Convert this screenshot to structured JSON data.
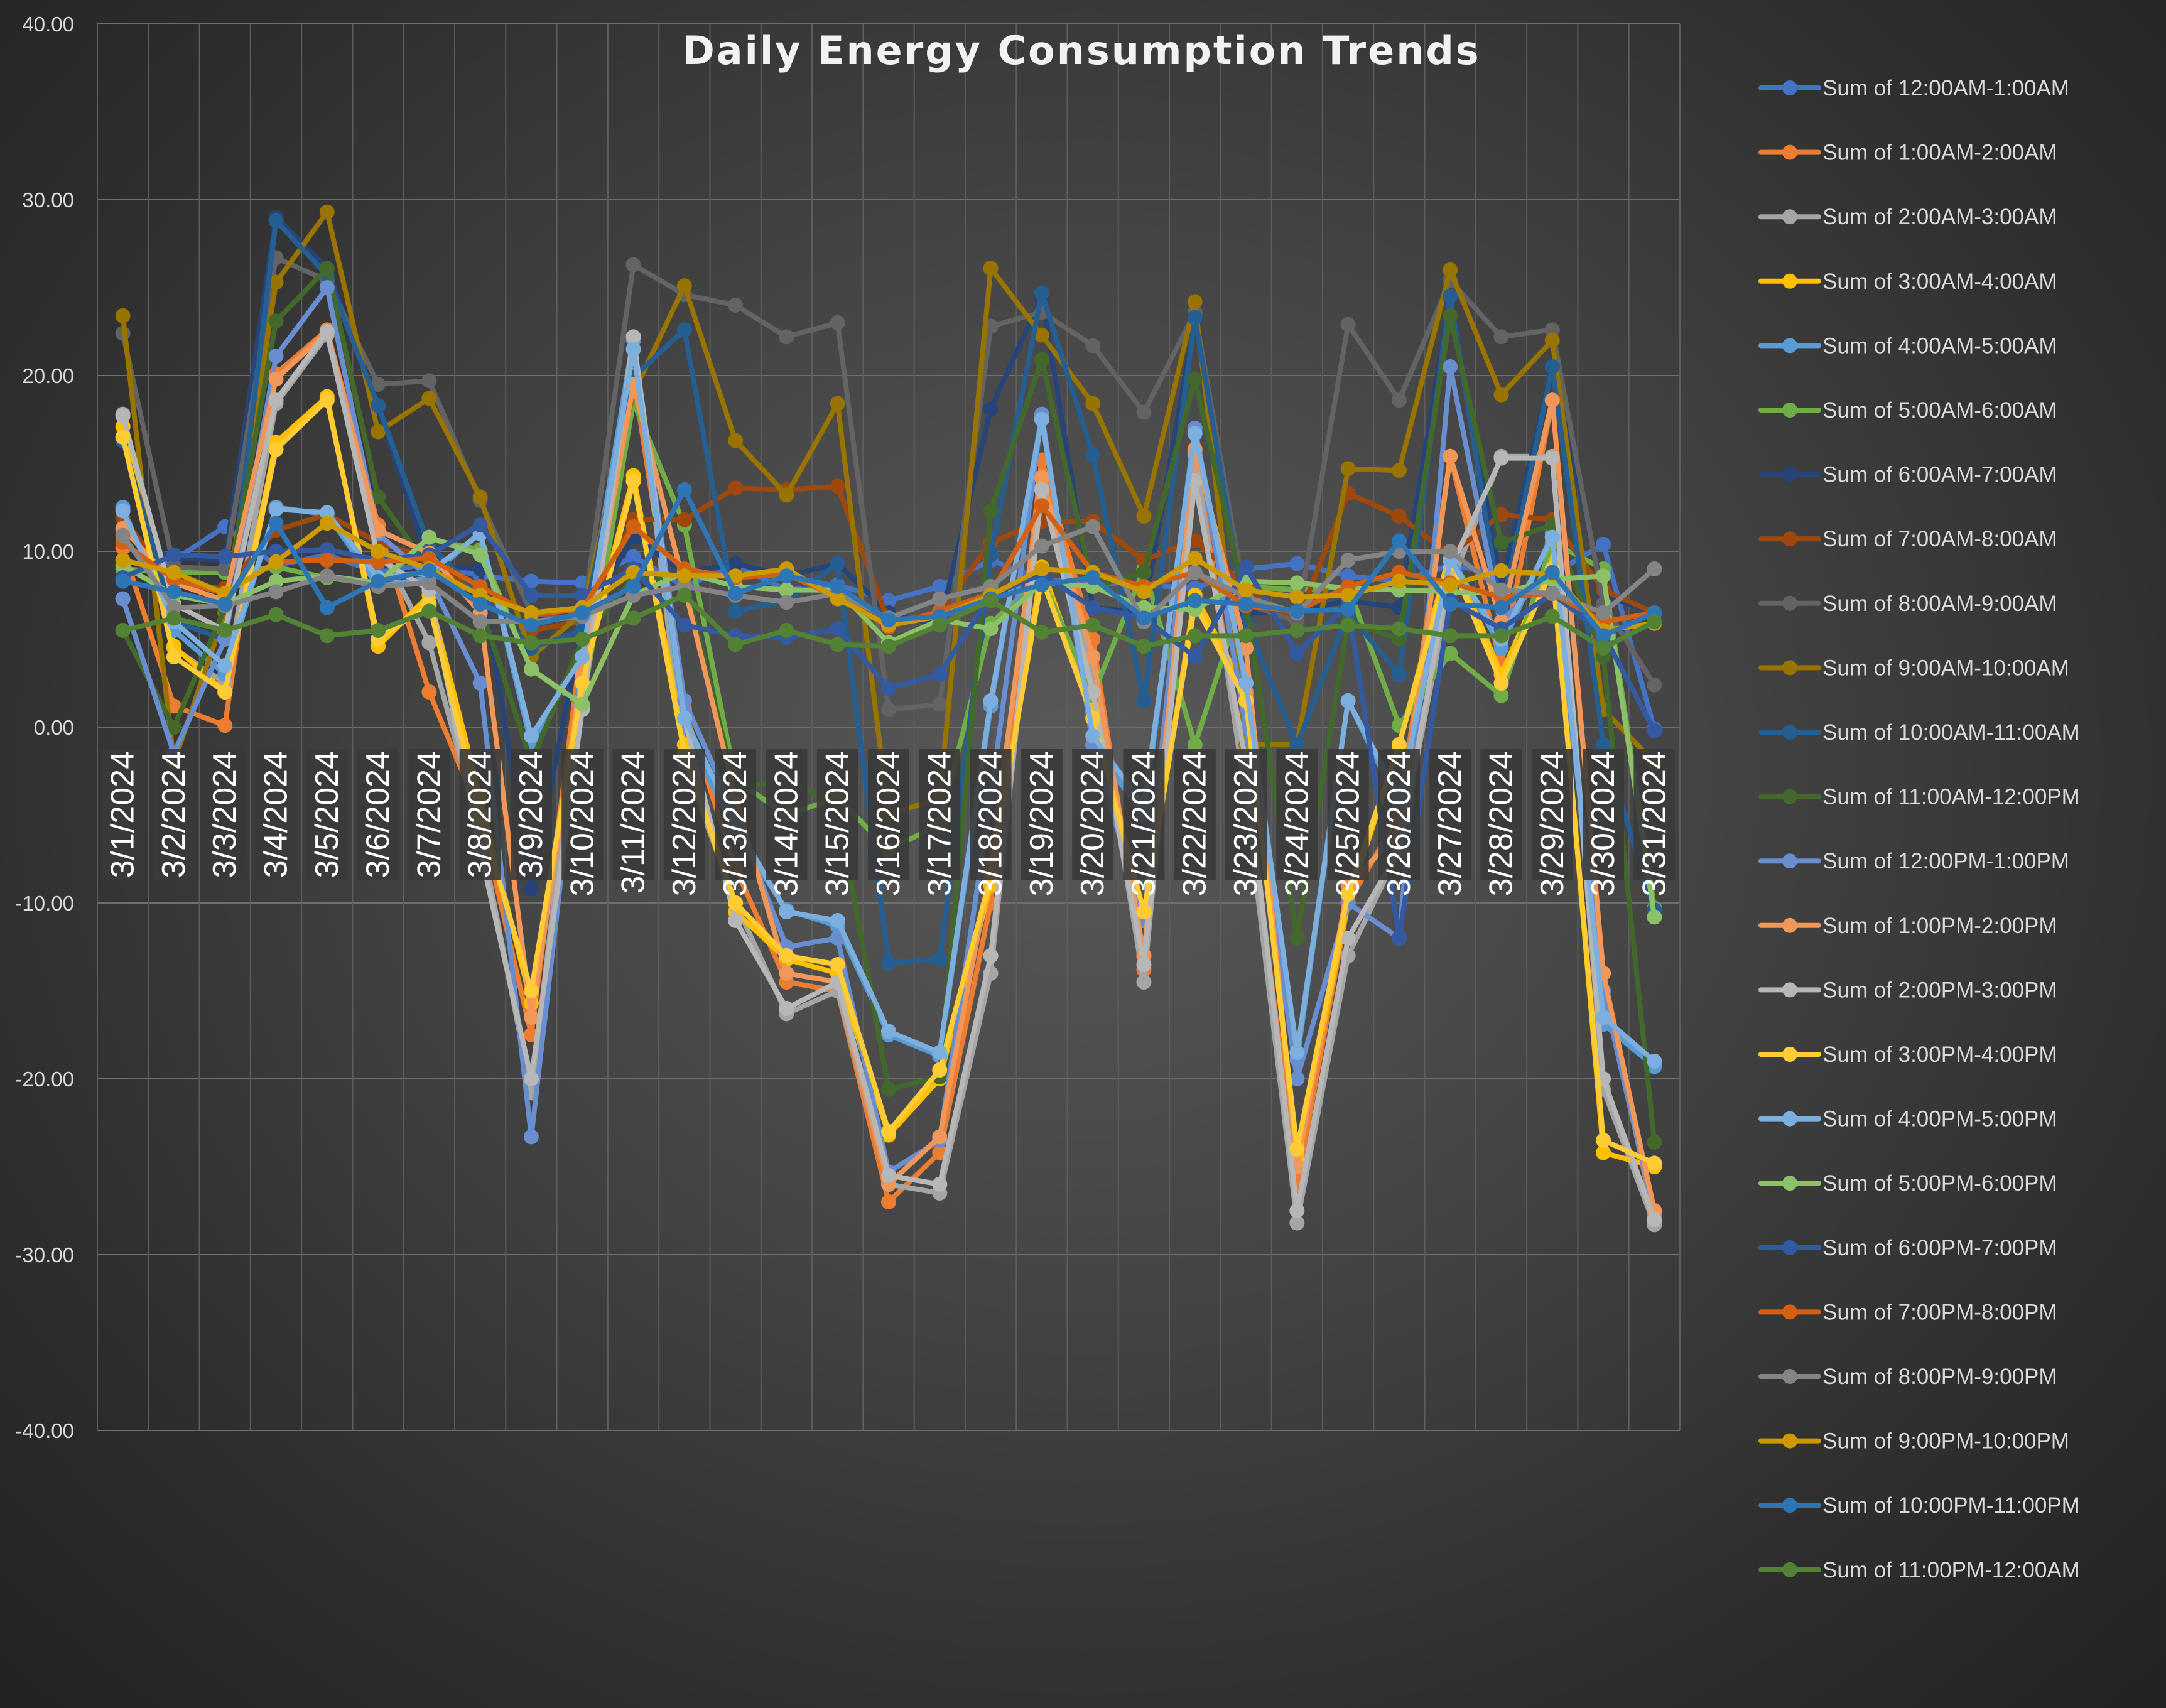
{
  "chart_data": {
    "type": "line",
    "title": "Daily Energy Consumption Trends",
    "xlabel": "",
    "ylabel": "",
    "ylim": [
      -40,
      40
    ],
    "ytick_labels": [
      "40.00",
      "30.00",
      "20.00",
      "10.00",
      "0.00",
      "-10.00",
      "-20.00",
      "-30.00",
      "-40.00"
    ],
    "grid": true,
    "legend_position": "right",
    "categories": [
      "3/1/2024",
      "3/2/2024",
      "3/3/2024",
      "3/4/2024",
      "3/5/2024",
      "3/6/2024",
      "3/7/2024",
      "3/8/2024",
      "3/9/2024",
      "3/10/2024",
      "3/11/2024",
      "3/12/2024",
      "3/13/2024",
      "3/14/2024",
      "3/15/2024",
      "3/16/2024",
      "3/17/2024",
      "3/18/2024",
      "3/19/2024",
      "3/20/2024",
      "3/21/2024",
      "3/22/2024",
      "3/23/2024",
      "3/24/2024",
      "3/25/2024",
      "3/26/2024",
      "3/27/2024",
      "3/28/2024",
      "3/29/2024",
      "3/30/2024",
      "3/31/2024"
    ],
    "series": [
      {
        "name": "Sum of 12:00AM-1:00AM",
        "color": "#4472C4",
        "values": [
          8.5,
          9.5,
          11.4,
          9.2,
          9.8,
          8.8,
          9.3,
          8.6,
          8.3,
          8.2,
          9.7,
          8.0,
          9.2,
          7.8,
          8.1,
          7.2,
          8.0,
          9.5,
          8.4,
          8.2,
          8.1,
          7.9,
          9.0,
          9.3,
          8.6,
          8.3,
          9.2,
          8.8,
          8.7,
          10.4,
          -0.1
        ]
      },
      {
        "name": "Sum of 1:00AM-2:00AM",
        "color": "#ED7D31",
        "values": [
          10.2,
          1.2,
          0.1,
          20.1,
          22.6,
          11.5,
          2.0,
          -5.0,
          -17.5,
          5.0,
          20.0,
          1.0,
          -8.0,
          -14.5,
          -15.0,
          -27.0,
          -24.2,
          -10.0,
          15.2,
          5.0,
          -13.8,
          15.7,
          -3.0,
          -26.0,
          -10.0,
          -5.0,
          15.4,
          3.5,
          18.6,
          -14.0,
          -28.2
        ]
      },
      {
        "name": "Sum of 2:00AM-3:00AM",
        "color": "#A5A5A5",
        "values": [
          17.8,
          4.5,
          2.5,
          18.4,
          22.3,
          10.5,
          4.8,
          -6.0,
          -20.8,
          4.0,
          22.2,
          -2.0,
          -10.0,
          -16.3,
          -15.0,
          -26.0,
          -26.5,
          -14.0,
          13.6,
          3.0,
          -14.5,
          15.5,
          -4.0,
          -28.2,
          -13.0,
          -7.0,
          8.0,
          15.4,
          15.4,
          -20.6,
          -28.3
        ]
      },
      {
        "name": "Sum of 3:00AM-4:00AM",
        "color": "#FFC000",
        "values": [
          17.1,
          4.6,
          2.0,
          16.2,
          18.8,
          4.6,
          7.5,
          -4.0,
          -15.7,
          3.0,
          14.3,
          -1.0,
          -10.5,
          -13.2,
          -14.0,
          -23.2,
          -20.0,
          -9.0,
          9.1,
          1.0,
          -11.0,
          7.5,
          2.0,
          -24.5,
          -10.0,
          -1.0,
          10.0,
          3.0,
          9.5,
          -24.2,
          -25.0
        ]
      },
      {
        "name": "Sum of 4:00AM-5:00AM",
        "color": "#5B9BD5",
        "values": [
          12.5,
          5.5,
          3.0,
          12.5,
          12.1,
          8.0,
          8.5,
          11.1,
          -1.0,
          4.5,
          22.1,
          0.0,
          -6.0,
          -10.4,
          -11.3,
          -17.5,
          -18.7,
          1.2,
          17.7,
          -1.0,
          -5.0,
          17.0,
          2.0,
          -18.9,
          1.5,
          -4.5,
          9.8,
          4.5,
          11.0,
          -16.9,
          -19.3
        ]
      },
      {
        "name": "Sum of 5:00AM-6:00AM",
        "color": "#70AD47",
        "values": [
          9.0,
          8.8,
          8.8,
          9.1,
          8.5,
          8.1,
          10.7,
          10.1,
          3.3,
          1.2,
          18.5,
          11.5,
          -3.0,
          -5.0,
          -4.0,
          -7.0,
          -5.5,
          5.9,
          8.5,
          1.8,
          9.0,
          -1.0,
          8.0,
          7.8,
          8.0,
          0.1,
          4.2,
          1.8,
          10.5,
          9.0,
          -10.3
        ]
      },
      {
        "name": "Sum of 6:00AM-7:00AM",
        "color": "#264478",
        "values": [
          11.0,
          9.6,
          9.5,
          29.0,
          26.1,
          18.2,
          9.2,
          9.0,
          -9.2,
          6.0,
          10.8,
          8.8,
          9.3,
          8.6,
          9.3,
          6.5,
          5.8,
          18.1,
          24.5,
          6.8,
          6.5,
          23.2,
          6.5,
          6.6,
          7.2,
          6.8,
          24.4,
          8.0,
          20.6,
          7.5,
          6.5
        ]
      },
      {
        "name": "Sum of 7:00AM-8:00AM",
        "color": "#9E480E",
        "values": [
          11.9,
          8.1,
          7.9,
          11.2,
          12.1,
          10.5,
          9.6,
          7.5,
          5.5,
          6.0,
          11.8,
          11.8,
          13.6,
          13.5,
          13.7,
          6.0,
          6.5,
          10.5,
          11.7,
          11.7,
          9.5,
          10.6,
          8.0,
          6.0,
          13.3,
          12.0,
          9.8,
          12.1,
          11.8,
          7.8,
          6.5
        ]
      },
      {
        "name": "Sum of 8:00AM-9:00AM",
        "color": "#636363",
        "values": [
          22.4,
          9.1,
          9.0,
          26.7,
          25.4,
          19.5,
          19.7,
          12.9,
          6.5,
          6.0,
          26.3,
          24.6,
          24.0,
          22.2,
          23.0,
          1.0,
          1.3,
          22.8,
          23.6,
          21.7,
          17.9,
          23.6,
          7.0,
          6.0,
          22.9,
          18.6,
          25.4,
          22.2,
          22.6,
          7.0,
          2.4
        ]
      },
      {
        "name": "Sum of 9:00AM-10:00AM",
        "color": "#997300",
        "values": [
          23.4,
          -2.0,
          6.5,
          25.3,
          29.3,
          16.8,
          18.7,
          13.1,
          4.0,
          6.5,
          19.0,
          25.1,
          16.3,
          13.2,
          18.4,
          -5.0,
          -4.0,
          26.1,
          22.3,
          18.4,
          12.0,
          24.2,
          -1.0,
          -1.0,
          14.7,
          14.6,
          26.0,
          18.9,
          22.0,
          1.0,
          -2.0
        ]
      },
      {
        "name": "Sum of 10:00AM-11:00AM",
        "color": "#255E91",
        "values": [
          16.3,
          6.0,
          5.0,
          28.8,
          25.7,
          18.3,
          10.3,
          7.6,
          4.5,
          5.5,
          19.9,
          22.6,
          6.6,
          7.2,
          9.3,
          -13.4,
          -13.2,
          9.8,
          24.7,
          15.5,
          1.5,
          23.3,
          6.0,
          -1.0,
          6.5,
          3.0,
          24.5,
          6.5,
          20.5,
          -1.0,
          -10.4
        ]
      },
      {
        "name": "Sum of 11:00AM-12:00PM",
        "color": "#43682B",
        "values": [
          5.5,
          0.0,
          6.8,
          23.1,
          26.1,
          13.1,
          9.0,
          7.0,
          -2.0,
          5.0,
          8.5,
          8.5,
          -3.5,
          -3.0,
          -4.5,
          -20.6,
          -19.9,
          12.3,
          20.9,
          8.0,
          8.8,
          19.8,
          7.0,
          -12.0,
          6.0,
          5.0,
          23.4,
          10.5,
          11.5,
          4.0,
          -23.6
        ]
      },
      {
        "name": "Sum of 12:00PM-1:00PM",
        "color": "#698ED0",
        "values": [
          7.3,
          -1.5,
          5.0,
          21.1,
          25.0,
          11.0,
          8.5,
          2.5,
          -23.3,
          2.0,
          22.0,
          1.5,
          -5.0,
          -12.5,
          -12.0,
          -25.3,
          -23.5,
          -4.0,
          17.8,
          -1.0,
          -11.0,
          17.0,
          0.0,
          -20.0,
          -10.0,
          -12.0,
          20.5,
          6.0,
          9.0,
          -15.0,
          -27.7
        ]
      },
      {
        "name": "Sum of 1:00PM-2:00PM",
        "color": "#F1975A",
        "values": [
          11.3,
          8.2,
          7.2,
          19.8,
          22.5,
          11.2,
          9.9,
          6.5,
          -16.5,
          3.0,
          19.5,
          8.0,
          -4.0,
          -14.0,
          -14.5,
          -26.0,
          -23.3,
          -8.0,
          14.2,
          4.0,
          -13.0,
          15.8,
          4.5,
          -25.0,
          -9.0,
          -6.0,
          15.4,
          6.0,
          18.6,
          -14.0,
          -27.5
        ]
      },
      {
        "name": "Sum of 2:00PM-3:00PM",
        "color": "#B7B7B7",
        "values": [
          17.7,
          7.0,
          5.5,
          18.6,
          22.5,
          9.6,
          7.8,
          -7.0,
          -20.0,
          1.0,
          22.2,
          0.5,
          -11.0,
          -16.0,
          -14.5,
          -25.5,
          -26.0,
          -13.0,
          13.5,
          2.0,
          -13.5,
          14.0,
          -2.0,
          -27.5,
          -12.0,
          -7.0,
          9.0,
          15.3,
          15.3,
          -20.0,
          -28.0
        ]
      },
      {
        "name": "Sum of 3:00PM-4:00PM",
        "color": "#FFCD33",
        "values": [
          16.5,
          4.0,
          2.0,
          15.8,
          18.6,
          5.0,
          7.0,
          -5.0,
          -15.0,
          2.5,
          14.0,
          -1.5,
          -10.0,
          -13.0,
          -13.5,
          -23.0,
          -19.5,
          -8.5,
          8.5,
          0.5,
          -10.5,
          7.0,
          1.5,
          -24.0,
          -9.5,
          -1.0,
          9.5,
          2.5,
          9.0,
          -23.5,
          -24.8
        ]
      },
      {
        "name": "Sum of 4:00PM-5:00PM",
        "color": "#7CAFDD",
        "values": [
          12.3,
          6.0,
          3.5,
          12.4,
          12.2,
          8.5,
          8.8,
          11.0,
          -0.5,
          4.0,
          21.5,
          0.5,
          -5.5,
          -10.5,
          -11.0,
          -17.3,
          -18.5,
          1.5,
          17.5,
          -0.5,
          -4.5,
          16.7,
          2.5,
          -18.5,
          1.5,
          -4.0,
          9.5,
          5.0,
          10.8,
          -16.5,
          -19.0
        ]
      },
      {
        "name": "Sum of 5:00PM-6:00PM",
        "color": "#8CC168",
        "values": [
          9.2,
          7.5,
          7.0,
          8.3,
          8.6,
          8.2,
          10.8,
          9.8,
          3.3,
          1.3,
          7.5,
          8.8,
          8.0,
          7.8,
          7.8,
          4.8,
          6.1,
          5.6,
          8.2,
          8.0,
          6.8,
          6.7,
          8.3,
          8.2,
          7.9,
          7.8,
          7.7,
          7.6,
          8.4,
          8.6,
          -10.8
        ]
      },
      {
        "name": "Sum of 6:00PM-7:00PM",
        "color": "#335AA1",
        "values": [
          8.5,
          9.8,
          9.7,
          10.0,
          10.1,
          9.5,
          9.8,
          11.5,
          7.5,
          7.5,
          9.0,
          5.8,
          5.2,
          5.1,
          5.6,
          2.2,
          3.0,
          7.5,
          8.7,
          6.8,
          6.2,
          4.0,
          9.1,
          4.2,
          7.0,
          -12.0,
          7.2,
          5.6,
          7.6,
          5.3,
          -0.2
        ]
      },
      {
        "name": "Sum of 7:00PM-8:00PM",
        "color": "#D26012",
        "values": [
          10.5,
          8.4,
          7.6,
          9.4,
          9.5,
          9.4,
          9.6,
          8.0,
          6.4,
          6.7,
          11.4,
          9.0,
          8.5,
          8.7,
          7.4,
          5.7,
          6.6,
          7.6,
          12.6,
          8.8,
          8.0,
          8.8,
          6.9,
          6.6,
          8.0,
          8.8,
          8.2,
          7.4,
          7.6,
          6.0,
          6.5
        ]
      },
      {
        "name": "Sum of 8:00PM-9:00PM",
        "color": "#848484",
        "values": [
          10.9,
          6.8,
          6.9,
          7.7,
          8.6,
          8.0,
          8.2,
          6.0,
          6.0,
          6.3,
          7.5,
          8.0,
          7.5,
          7.1,
          7.6,
          6.2,
          7.3,
          8.0,
          10.3,
          11.4,
          6.0,
          8.8,
          7.4,
          6.5,
          9.5,
          10.0,
          10.0,
          7.8,
          7.6,
          6.5,
          9.0
        ]
      },
      {
        "name": "Sum of 9:00PM-10:00PM",
        "color": "#CC9A00",
        "values": [
          9.5,
          8.8,
          7.6,
          9.4,
          11.6,
          10.0,
          9.0,
          7.5,
          6.5,
          6.8,
          8.8,
          8.6,
          8.6,
          9.0,
          7.3,
          5.8,
          6.3,
          7.5,
          9.0,
          8.8,
          7.7,
          9.6,
          7.8,
          7.4,
          7.5,
          8.3,
          8.1,
          8.9,
          8.7,
          5.5,
          5.9
        ]
      },
      {
        "name": "Sum of 10:00PM-11:00PM",
        "color": "#2E75B6",
        "values": [
          8.3,
          7.7,
          7.0,
          11.6,
          6.8,
          8.3,
          8.9,
          7.0,
          5.8,
          6.5,
          8.0,
          13.5,
          7.6,
          8.6,
          8.0,
          6.1,
          6.3,
          7.3,
          8.1,
          8.5,
          6.2,
          7.2,
          7.0,
          6.6,
          6.7,
          10.6,
          7.0,
          6.8,
          8.8,
          5.2,
          6.5
        ]
      },
      {
        "name": "Sum of 11:00PM-12:00AM",
        "color": "#548235",
        "values": [
          5.5,
          6.2,
          5.5,
          6.4,
          5.2,
          5.5,
          6.6,
          5.2,
          4.8,
          5.0,
          6.2,
          7.5,
          4.7,
          5.5,
          4.7,
          4.6,
          5.8,
          7.2,
          5.4,
          5.8,
          4.6,
          5.2,
          5.2,
          5.5,
          5.8,
          5.6,
          5.2,
          5.2,
          6.3,
          4.5,
          6.0
        ]
      }
    ]
  }
}
